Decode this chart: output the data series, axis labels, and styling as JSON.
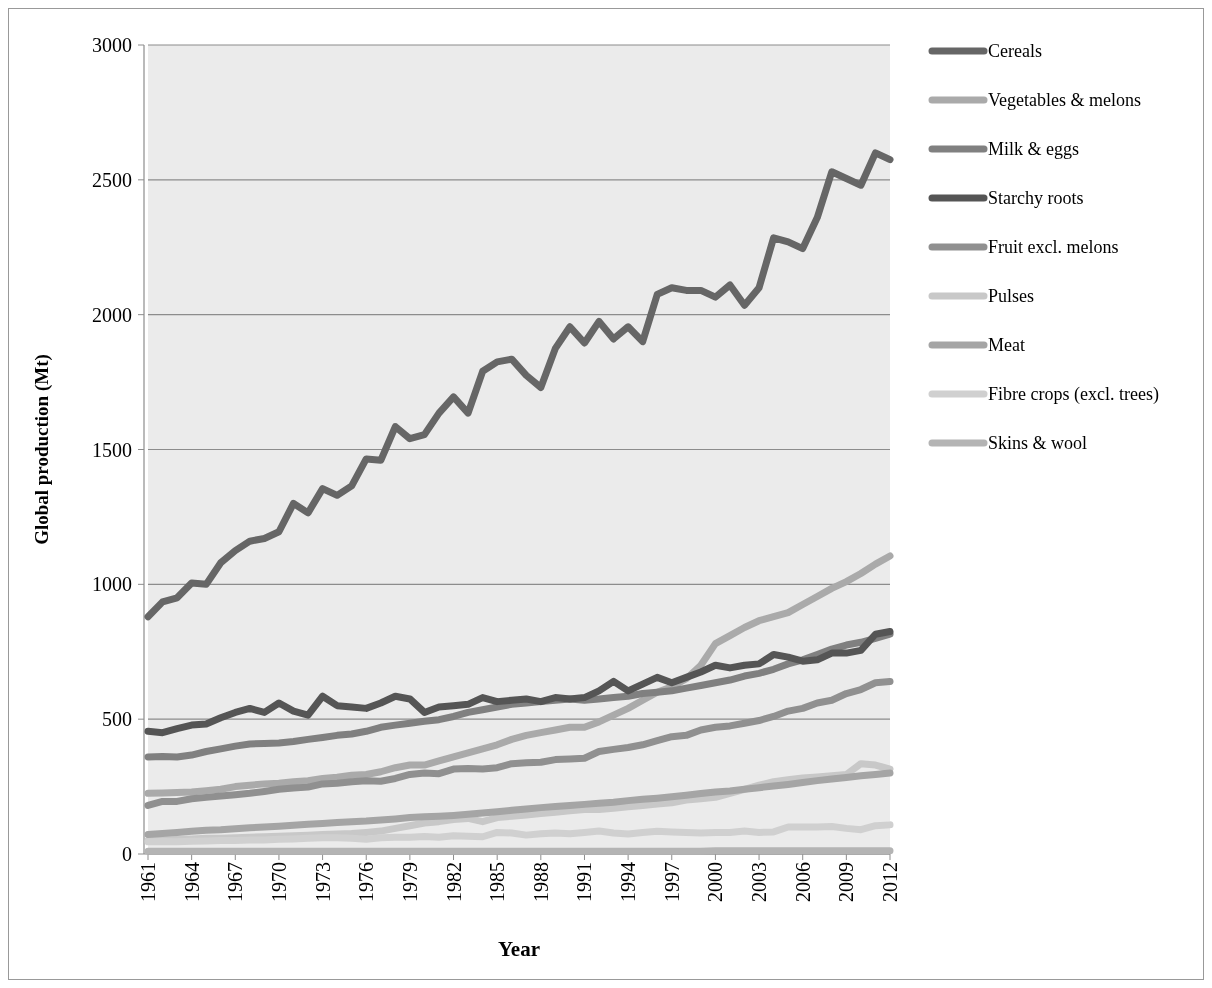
{
  "chart_data": {
    "type": "line",
    "xlabel": "Year",
    "ylabel": "Global production (Mt)",
    "x": [
      1961,
      1962,
      1963,
      1964,
      1965,
      1966,
      1967,
      1968,
      1969,
      1970,
      1971,
      1972,
      1973,
      1974,
      1975,
      1976,
      1977,
      1978,
      1979,
      1980,
      1981,
      1982,
      1983,
      1984,
      1985,
      1986,
      1987,
      1988,
      1989,
      1990,
      1991,
      1992,
      1993,
      1994,
      1995,
      1996,
      1997,
      1998,
      1999,
      2000,
      2001,
      2002,
      2003,
      2004,
      2005,
      2006,
      2007,
      2008,
      2009,
      2010,
      2011,
      2012
    ],
    "xlim": [
      1961,
      2012
    ],
    "xticks": [
      1961,
      1964,
      1967,
      1970,
      1973,
      1976,
      1979,
      1982,
      1985,
      1988,
      1991,
      1994,
      1997,
      2000,
      2003,
      2006,
      2009,
      2012
    ],
    "ylim": [
      0,
      3000
    ],
    "yticks": [
      0,
      500,
      1000,
      1500,
      2000,
      2500,
      3000
    ],
    "grid": "y",
    "legend": "right",
    "marker": "none",
    "line_style": "solid",
    "series": [
      {
        "name": "Cereals",
        "color": "#666666",
        "values": [
          880,
          935,
          950,
          1005,
          1000,
          1080,
          1125,
          1160,
          1170,
          1195,
          1300,
          1265,
          1355,
          1330,
          1365,
          1465,
          1460,
          1585,
          1540,
          1555,
          1635,
          1695,
          1635,
          1790,
          1825,
          1835,
          1775,
          1730,
          1875,
          1955,
          1895,
          1975,
          1910,
          1955,
          1900,
          2075,
          2100,
          2090,
          2090,
          2065,
          2110,
          2035,
          2100,
          2285,
          2270,
          2245,
          2360,
          2530,
          2505,
          2480,
          2600,
          2575
        ]
      },
      {
        "name": "Vegetables & melons",
        "color": "#aaaaaa",
        "values": [
          225,
          226,
          228,
          230,
          235,
          240,
          250,
          255,
          260,
          262,
          268,
          272,
          280,
          285,
          292,
          295,
          305,
          320,
          330,
          330,
          345,
          360,
          375,
          390,
          405,
          425,
          440,
          450,
          460,
          470,
          470,
          490,
          515,
          540,
          570,
          600,
          620,
          650,
          700,
          780,
          810,
          840,
          865,
          880,
          895,
          925,
          955,
          985,
          1010,
          1040,
          1075,
          1105
        ]
      },
      {
        "name": "Milk & eggs",
        "color": "#808080",
        "values": [
          360,
          362,
          360,
          367,
          380,
          390,
          400,
          408,
          410,
          412,
          417,
          425,
          432,
          440,
          445,
          455,
          470,
          478,
          485,
          492,
          498,
          510,
          525,
          535,
          545,
          555,
          560,
          565,
          570,
          575,
          570,
          575,
          580,
          585,
          595,
          600,
          605,
          615,
          625,
          635,
          645,
          660,
          670,
          685,
          705,
          720,
          740,
          760,
          775,
          785,
          800,
          815
        ]
      },
      {
        "name": "Starchy roots",
        "color": "#555555",
        "values": [
          455,
          450,
          465,
          478,
          482,
          505,
          525,
          540,
          525,
          560,
          530,
          515,
          585,
          550,
          545,
          540,
          560,
          585,
          575,
          525,
          545,
          550,
          555,
          580,
          565,
          570,
          575,
          565,
          580,
          575,
          580,
          605,
          640,
          605,
          630,
          655,
          635,
          655,
          675,
          700,
          690,
          700,
          705,
          740,
          730,
          715,
          720,
          745,
          745,
          755,
          815,
          825
        ]
      },
      {
        "name": "Fruit excl. melons",
        "color": "#909090",
        "values": [
          180,
          195,
          195,
          205,
          210,
          215,
          220,
          225,
          232,
          240,
          245,
          248,
          260,
          262,
          268,
          272,
          270,
          280,
          295,
          300,
          298,
          315,
          317,
          315,
          320,
          335,
          338,
          340,
          350,
          352,
          355,
          380,
          388,
          395,
          405,
          420,
          435,
          440,
          460,
          470,
          475,
          485,
          495,
          510,
          530,
          540,
          560,
          570,
          595,
          610,
          635,
          640
        ]
      },
      {
        "name": "Pulses",
        "color": "#c8c8c8",
        "values": [
          50,
          52,
          54,
          56,
          58,
          58,
          60,
          62,
          64,
          66,
          68,
          70,
          72,
          74,
          76,
          80,
          85,
          95,
          105,
          115,
          120,
          128,
          132,
          120,
          135,
          140,
          145,
          150,
          155,
          160,
          165,
          165,
          170,
          175,
          180,
          185,
          190,
          200,
          205,
          210,
          225,
          240,
          255,
          268,
          275,
          282,
          286,
          290,
          295,
          335,
          330,
          315
        ]
      },
      {
        "name": "Meat",
        "color": "#a5a5a5",
        "values": [
          72,
          76,
          80,
          84,
          88,
          90,
          94,
          97,
          100,
          103,
          107,
          110,
          113,
          117,
          120,
          122,
          126,
          130,
          135,
          138,
          140,
          143,
          147,
          152,
          157,
          162,
          167,
          172,
          176,
          180,
          184,
          188,
          192,
          198,
          203,
          207,
          212,
          218,
          224,
          230,
          234,
          240,
          246,
          252,
          258,
          265,
          272,
          278,
          284,
          290,
          295,
          300
        ]
      },
      {
        "name": "Fibre crops (excl. trees)",
        "color": "#d0d0d0",
        "values": [
          45,
          46,
          45,
          47,
          48,
          50,
          50,
          52,
          52,
          55,
          56,
          58,
          60,
          60,
          58,
          55,
          60,
          62,
          62,
          65,
          62,
          68,
          66,
          64,
          80,
          78,
          70,
          75,
          78,
          75,
          80,
          85,
          78,
          74,
          80,
          84,
          82,
          80,
          78,
          80,
          80,
          85,
          80,
          82,
          100,
          100,
          100,
          102,
          95,
          90,
          105,
          108
        ]
      },
      {
        "name": "Skins & wool",
        "color": "#b4b4b4",
        "values": [
          10,
          10,
          10,
          10,
          10,
          10,
          10,
          10,
          10,
          10,
          10,
          10,
          10,
          10,
          10,
          10,
          10,
          10,
          10,
          10,
          10,
          10,
          10,
          10,
          10,
          10,
          10,
          10,
          10,
          10,
          10,
          10,
          10,
          10,
          10,
          10,
          10,
          10,
          10,
          12,
          12,
          12,
          12,
          12,
          12,
          12,
          12,
          12,
          12,
          12,
          12,
          12
        ]
      }
    ]
  }
}
